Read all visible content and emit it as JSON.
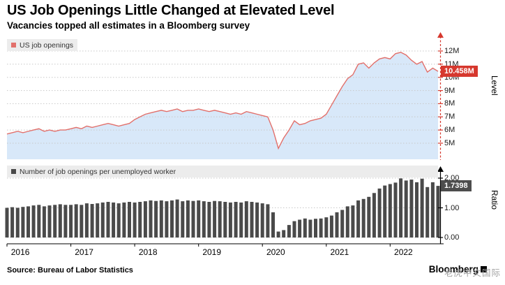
{
  "header": {
    "title": "US Job Openings Little Changed at Elevated Level",
    "subtitle": "Vacancies topped all estimates in a Bloomberg survey"
  },
  "top_chart": {
    "legend": "US job openings",
    "axis_label": "Level",
    "last_value_label": "10.458M",
    "ticks": [
      "12M",
      "11M",
      "10M",
      "9M",
      "8M",
      "7M",
      "6M",
      "5M"
    ]
  },
  "bottom_chart": {
    "legend": "Number of job openings per unemployed worker",
    "axis_label": "Ratio",
    "last_value_label": "1.7398",
    "ticks": [
      "2.00",
      "1.00",
      "0.00"
    ]
  },
  "x_axis": {
    "years": [
      "2016",
      "2017",
      "2018",
      "2019",
      "2020",
      "2021",
      "2022"
    ]
  },
  "footer": {
    "source": "Source: Bureau of Labor Statistics",
    "brand": "Bloomberg",
    "watermark": "老虎中文国际"
  },
  "colors": {
    "accent_red": "#d6382e",
    "line": "#e2706b",
    "area_fill": "#d8e8f9",
    "bar": "#4a4a4a",
    "badge_dark": "#4d4d4d",
    "legend_bg": "#ececec"
  },
  "chart_data": [
    {
      "type": "area",
      "title": "US job openings",
      "unit": "millions",
      "frequency": "monthly",
      "x_start": "2016-01",
      "x_end": "2022-10",
      "ylim": [
        3.8,
        12.8
      ],
      "yticks": [
        5,
        6,
        7,
        8,
        9,
        10,
        11,
        12
      ],
      "last_value": 10.458,
      "line_color": "#e2706b",
      "fill_color": "#d8e8f9",
      "values": [
        5.7,
        5.8,
        5.9,
        5.8,
        5.9,
        6.0,
        6.1,
        5.9,
        6.0,
        5.9,
        6.0,
        6.0,
        6.1,
        6.2,
        6.1,
        6.3,
        6.2,
        6.3,
        6.4,
        6.5,
        6.4,
        6.3,
        6.4,
        6.5,
        6.8,
        7.0,
        7.2,
        7.3,
        7.4,
        7.5,
        7.4,
        7.5,
        7.6,
        7.4,
        7.5,
        7.5,
        7.6,
        7.5,
        7.4,
        7.5,
        7.4,
        7.3,
        7.2,
        7.3,
        7.2,
        7.4,
        7.3,
        7.2,
        7.1,
        7.0,
        6.0,
        4.6,
        5.4,
        6.0,
        6.7,
        6.4,
        6.5,
        6.7,
        6.8,
        6.9,
        7.2,
        7.9,
        8.6,
        9.3,
        9.9,
        10.2,
        11.0,
        11.1,
        10.7,
        11.1,
        11.4,
        11.5,
        11.4,
        11.8,
        11.9,
        11.7,
        11.3,
        11.0,
        11.2,
        10.4,
        10.7,
        10.458
      ]
    },
    {
      "type": "bar",
      "title": "Number of job openings per unemployed worker",
      "unit": "ratio",
      "frequency": "monthly",
      "x_start": "2016-01",
      "x_end": "2022-10",
      "ylim": [
        0,
        2.2
      ],
      "yticks": [
        0,
        1,
        2
      ],
      "last_value": 1.7398,
      "bar_color": "#4a4a4a",
      "values": [
        1.0,
        1.02,
        1.0,
        1.03,
        1.05,
        1.08,
        1.1,
        1.05,
        1.08,
        1.1,
        1.12,
        1.1,
        1.1,
        1.12,
        1.1,
        1.15,
        1.13,
        1.15,
        1.18,
        1.2,
        1.18,
        1.15,
        1.18,
        1.2,
        1.18,
        1.2,
        1.22,
        1.25,
        1.23,
        1.25,
        1.22,
        1.25,
        1.28,
        1.22,
        1.25,
        1.23,
        1.25,
        1.22,
        1.2,
        1.23,
        1.22,
        1.2,
        1.18,
        1.2,
        1.18,
        1.22,
        1.2,
        1.18,
        1.15,
        1.12,
        0.85,
        0.2,
        0.25,
        0.42,
        0.55,
        0.6,
        0.64,
        0.6,
        0.63,
        0.64,
        0.68,
        0.74,
        0.85,
        0.93,
        1.05,
        1.08,
        1.25,
        1.3,
        1.37,
        1.5,
        1.65,
        1.75,
        1.8,
        1.85,
        1.99,
        1.92,
        1.95,
        1.86,
        1.98,
        1.7,
        1.86,
        1.7398
      ]
    }
  ]
}
